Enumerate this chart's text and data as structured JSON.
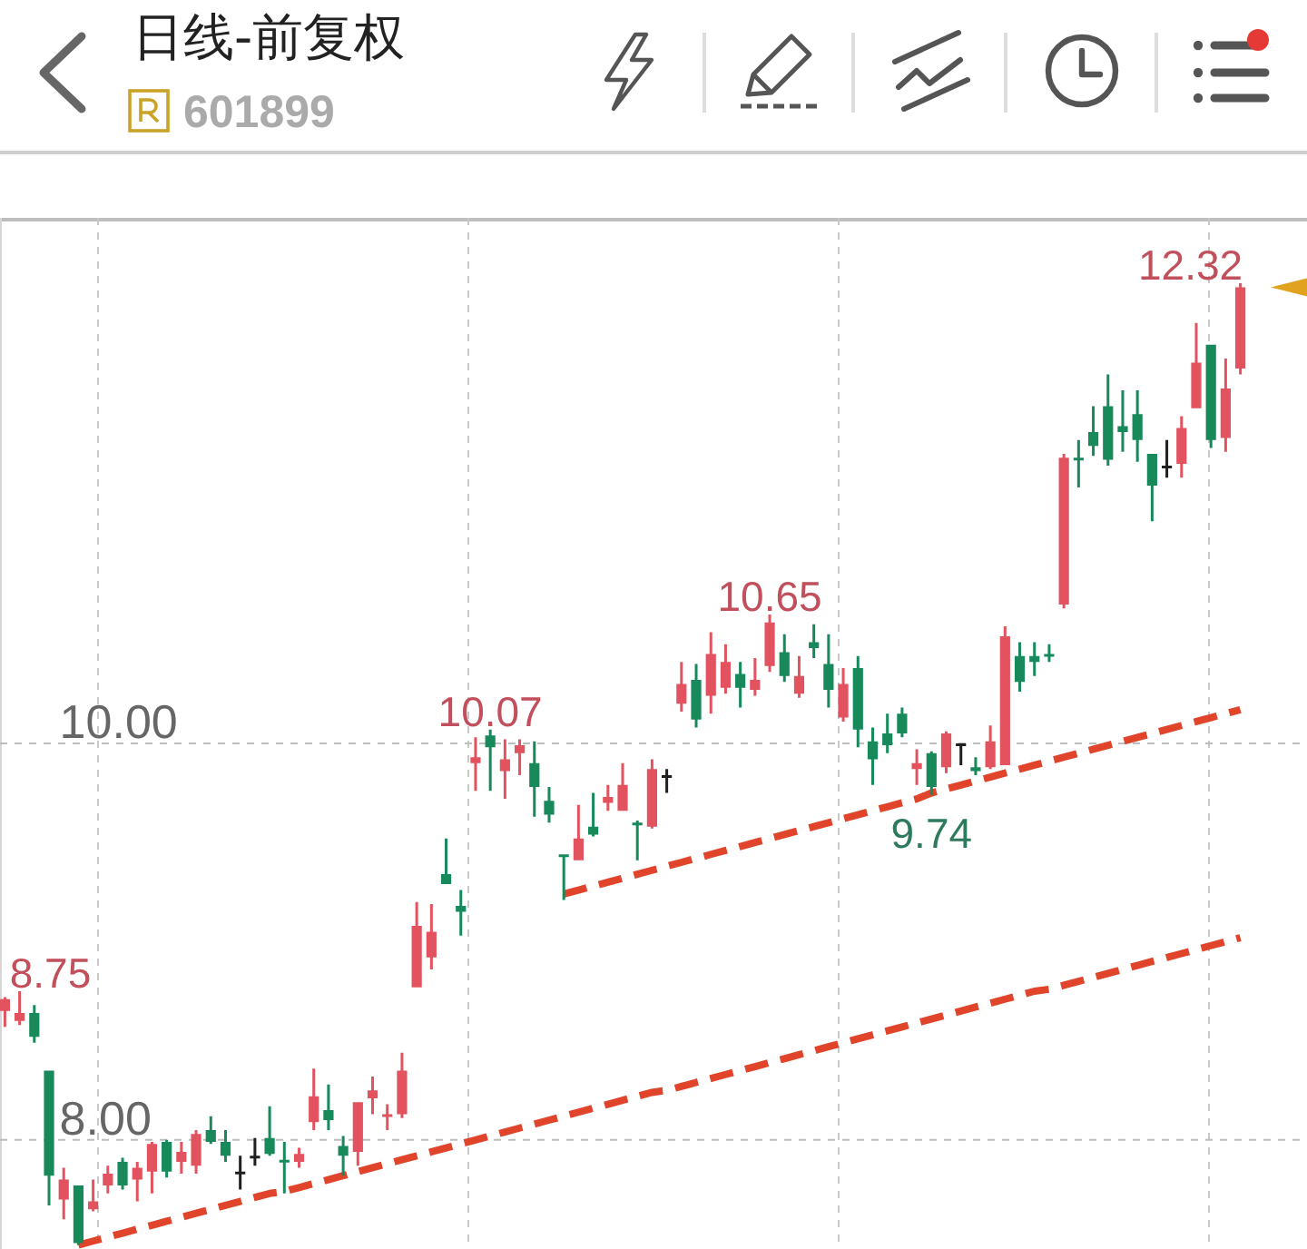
{
  "chart_data": {
    "type": "candlestick",
    "title": "日线-前复权",
    "subtitle": "601899",
    "categories": [
      null,
      null,
      null,
      null,
      null,
      null,
      null,
      null,
      null,
      null,
      null,
      null,
      null,
      null,
      null,
      null,
      null,
      null,
      null,
      null,
      null,
      null,
      null,
      null,
      null,
      null,
      null,
      null,
      null,
      null,
      null,
      null,
      null,
      null,
      null,
      null,
      null,
      null,
      null,
      null,
      null,
      null,
      null,
      null,
      null,
      null,
      null,
      null,
      null,
      null,
      null,
      null,
      null,
      null,
      null,
      null,
      null,
      null,
      null,
      null,
      null,
      null,
      null,
      null,
      null,
      null,
      null,
      null,
      null,
      null,
      null,
      null,
      null,
      null,
      null,
      null,
      null,
      null,
      null,
      null,
      null,
      null,
      null,
      null,
      null
    ],
    "ohlc": [
      [
        8.65,
        8.72,
        8.57,
        8.71
      ],
      [
        8.6,
        8.75,
        8.58,
        8.64
      ],
      [
        8.64,
        8.68,
        8.49,
        8.52
      ],
      [
        8.35,
        8.35,
        7.67,
        7.82
      ],
      [
        7.7,
        7.86,
        7.6,
        7.8
      ],
      [
        7.77,
        7.77,
        7.47,
        7.48
      ],
      [
        7.65,
        7.8,
        7.64,
        7.69
      ],
      [
        7.77,
        7.87,
        7.73,
        7.83
      ],
      [
        7.89,
        7.91,
        7.75,
        7.77
      ],
      [
        7.8,
        7.89,
        7.69,
        7.86
      ],
      [
        7.84,
        7.99,
        7.73,
        7.98
      ],
      [
        7.99,
        8.0,
        7.81,
        7.84
      ],
      [
        7.89,
        7.99,
        7.83,
        7.94
      ],
      [
        7.87,
        8.05,
        7.83,
        8.03
      ],
      [
        8.05,
        8.12,
        7.98,
        7.99
      ],
      [
        7.99,
        8.05,
        7.89,
        7.92
      ],
      [
        7.84,
        7.92,
        7.75,
        7.84
      ],
      [
        7.92,
        8.01,
        7.87,
        7.92
      ],
      [
        8.01,
        8.17,
        7.92,
        7.93
      ],
      [
        7.9,
        7.99,
        7.73,
        7.89
      ],
      [
        7.89,
        7.96,
        7.86,
        7.93
      ],
      [
        8.09,
        8.36,
        8.05,
        8.22
      ],
      [
        8.15,
        8.28,
        8.05,
        8.1
      ],
      [
        7.97,
        8.02,
        7.82,
        7.92
      ],
      [
        7.94,
        8.19,
        7.87,
        8.19
      ],
      [
        8.21,
        8.32,
        8.13,
        8.25
      ],
      [
        8.12,
        8.18,
        8.05,
        8.13
      ],
      [
        8.13,
        8.44,
        8.11,
        8.35
      ],
      [
        8.77,
        9.2,
        8.77,
        9.08
      ],
      [
        8.92,
        9.19,
        8.86,
        9.05
      ],
      [
        9.34,
        9.52,
        9.29,
        9.29
      ],
      [
        9.18,
        9.26,
        9.03,
        9.15
      ],
      [
        9.9,
        10.03,
        9.76,
        9.93
      ],
      [
        10.04,
        10.07,
        9.76,
        9.98
      ],
      [
        9.86,
        10.02,
        9.72,
        9.92
      ],
      [
        9.95,
        10.02,
        9.84,
        9.99
      ],
      [
        9.9,
        10.01,
        9.63,
        9.78
      ],
      [
        9.71,
        9.78,
        9.6,
        9.64
      ],
      [
        9.44,
        9.44,
        9.21,
        9.43
      ],
      [
        9.41,
        9.69,
        9.41,
        9.52
      ],
      [
        9.58,
        9.75,
        9.53,
        9.54
      ],
      [
        9.7,
        9.79,
        9.66,
        9.73
      ],
      [
        9.66,
        9.9,
        9.66,
        9.79
      ],
      [
        9.6,
        9.61,
        9.41,
        9.59
      ],
      [
        9.58,
        9.92,
        9.57,
        9.87
      ],
      [
        9.84,
        9.87,
        9.75,
        9.84
      ],
      [
        10.2,
        10.41,
        10.16,
        10.3
      ],
      [
        10.32,
        10.4,
        10.08,
        10.12
      ],
      [
        10.24,
        10.56,
        10.15,
        10.45
      ],
      [
        10.28,
        10.5,
        10.25,
        10.41
      ],
      [
        10.35,
        10.41,
        10.18,
        10.28
      ],
      [
        10.27,
        10.43,
        10.24,
        10.32
      ],
      [
        10.39,
        10.65,
        10.36,
        10.61
      ],
      [
        10.46,
        10.55,
        10.31,
        10.34
      ],
      [
        10.25,
        10.44,
        10.23,
        10.34
      ],
      [
        10.51,
        10.6,
        10.43,
        10.48
      ],
      [
        10.4,
        10.55,
        10.18,
        10.27
      ],
      [
        10.13,
        10.38,
        10.11,
        10.3
      ],
      [
        10.38,
        10.44,
        9.98,
        10.07
      ],
      [
        10.01,
        10.08,
        9.79,
        9.92
      ],
      [
        10.05,
        10.15,
        9.95,
        9.99
      ],
      [
        10.15,
        10.18,
        10.03,
        10.05
      ],
      [
        9.87,
        9.97,
        9.79,
        9.9
      ],
      [
        9.95,
        9.96,
        9.74,
        9.78
      ],
      [
        9.88,
        10.06,
        9.85,
        10.05
      ],
      [
        10.0,
        10.0,
        9.89,
        10.0
      ],
      [
        9.88,
        9.93,
        9.84,
        9.86
      ],
      [
        9.88,
        10.09,
        9.87,
        10.01
      ],
      [
        9.89,
        10.59,
        9.89,
        10.54
      ],
      [
        10.44,
        10.51,
        10.26,
        10.31
      ],
      [
        10.44,
        10.51,
        10.34,
        10.41
      ],
      [
        10.45,
        10.5,
        10.41,
        10.44
      ],
      [
        10.7,
        11.46,
        10.68,
        11.44
      ],
      [
        11.44,
        11.53,
        11.29,
        11.43
      ],
      [
        11.57,
        11.7,
        11.45,
        11.5
      ],
      [
        11.7,
        11.86,
        11.4,
        11.43
      ],
      [
        11.6,
        11.78,
        11.47,
        11.57
      ],
      [
        11.66,
        11.78,
        11.42,
        11.53
      ],
      [
        11.46,
        11.46,
        11.12,
        11.3
      ],
      [
        11.4,
        11.53,
        11.34,
        11.4
      ],
      [
        11.41,
        11.65,
        11.34,
        11.59
      ],
      [
        11.69,
        12.12,
        11.69,
        11.92
      ],
      [
        12.01,
        12.01,
        11.49,
        11.53
      ],
      [
        11.54,
        11.94,
        11.47,
        11.79
      ],
      [
        11.89,
        12.32,
        11.86,
        12.3
      ]
    ],
    "value_labels": [
      null,
      "8.75",
      null,
      null,
      null,
      null,
      null,
      null,
      null,
      null,
      null,
      null,
      null,
      null,
      null,
      null,
      null,
      null,
      null,
      null,
      null,
      null,
      null,
      null,
      null,
      null,
      null,
      null,
      null,
      null,
      null,
      null,
      null,
      "10.07",
      null,
      null,
      null,
      null,
      null,
      null,
      null,
      null,
      null,
      null,
      null,
      null,
      null,
      null,
      null,
      null,
      null,
      null,
      "10.65",
      null,
      null,
      null,
      null,
      null,
      null,
      null,
      null,
      null,
      null,
      "9.74",
      null,
      null,
      null,
      null,
      null,
      null,
      null,
      null,
      null,
      null,
      null,
      null,
      null,
      null,
      null,
      null,
      null,
      null,
      null,
      null,
      "12.32"
    ],
    "colors": [
      "#e2535f",
      "#e2535f",
      "#17895b",
      "#17895b",
      "#e2535f",
      "#17895b",
      "#e2535f",
      "#e2535f",
      "#17895b",
      "#e2535f",
      "#e2535f",
      "#17895b",
      "#e2535f",
      "#e2535f",
      "#17895b",
      "#17895b",
      "#1f1f1f",
      "#1f1f1f",
      "#17895b",
      "#17895b",
      "#e2535f",
      "#e2535f",
      "#17895b",
      "#17895b",
      "#e2535f",
      "#e2535f",
      "#e2535f",
      "#e2535f",
      "#e2535f",
      "#e2535f",
      "#17895b",
      "#17895b",
      "#e2535f",
      "#17895b",
      "#e2535f",
      "#e2535f",
      "#17895b",
      "#17895b",
      "#17895b",
      "#e2535f",
      "#17895b",
      "#e2535f",
      "#e2535f",
      "#17895b",
      "#e2535f",
      "#1f1f1f",
      "#e2535f",
      "#17895b",
      "#e2535f",
      "#e2535f",
      "#17895b",
      "#e2535f",
      "#e2535f",
      "#17895b",
      "#e2535f",
      "#17895b",
      "#17895b",
      "#e2535f",
      "#17895b",
      "#17895b",
      "#17895b",
      "#17895b",
      "#e2535f",
      "#17895b",
      "#e2535f",
      "#1f1f1f",
      "#17895b",
      "#e2535f",
      "#e2535f",
      "#17895b",
      "#17895b",
      "#17895b",
      "#e2535f",
      "#17895b",
      "#17895b",
      "#17895b",
      "#17895b",
      "#17895b",
      "#17895b",
      "#1f1f1f",
      "#e2535f",
      "#e2535f",
      "#17895b",
      "#e2535f",
      "#e2535f"
    ],
    "series": [
      {
        "type": "line",
        "color": "#e0452b",
        "line_style": "dashed",
        "values": [
          null,
          null,
          null,
          null,
          null,
          null,
          null,
          null,
          null,
          null,
          null,
          null,
          null,
          null,
          null,
          null,
          null,
          null,
          null,
          null,
          null,
          null,
          null,
          null,
          null,
          null,
          null,
          null,
          null,
          null,
          null,
          null,
          null,
          null,
          null,
          null,
          null,
          null,
          9.24,
          9.26,
          9.28,
          9.3,
          9.32,
          9.34,
          9.36,
          9.38,
          9.4,
          9.42,
          9.44,
          9.46,
          9.48,
          9.5,
          9.52,
          9.54,
          9.56,
          9.58,
          9.6,
          9.62,
          9.64,
          9.66,
          9.68,
          9.7,
          9.72,
          9.75,
          9.77,
          9.79,
          9.81,
          9.83,
          9.85,
          9.87,
          9.89,
          9.91,
          9.93,
          9.95,
          9.97,
          9.99,
          10.01,
          10.03,
          10.05,
          10.07,
          10.09,
          10.11,
          10.13,
          10.15,
          10.17
        ]
      },
      {
        "type": "line",
        "color": "#e0452b",
        "line_style": "dashed",
        "values": [
          null,
          null,
          null,
          null,
          null,
          7.47,
          7.49,
          7.51,
          7.53,
          7.55,
          7.57,
          7.59,
          7.61,
          7.63,
          7.65,
          7.67,
          7.69,
          7.71,
          7.73,
          7.74,
          7.76,
          7.78,
          7.8,
          7.82,
          7.84,
          7.86,
          7.88,
          7.9,
          7.92,
          7.94,
          7.96,
          7.98,
          8.0,
          8.02,
          8.04,
          8.06,
          8.08,
          8.1,
          8.12,
          8.14,
          8.16,
          8.18,
          8.2,
          8.22,
          8.24,
          8.25,
          8.27,
          8.29,
          8.31,
          8.33,
          8.35,
          8.37,
          8.39,
          8.41,
          8.43,
          8.45,
          8.47,
          8.49,
          8.51,
          8.53,
          8.55,
          8.57,
          8.59,
          8.61,
          8.63,
          8.65,
          8.67,
          8.69,
          8.71,
          8.73,
          8.75,
          8.76,
          8.78,
          8.8,
          8.82,
          8.84,
          8.86,
          8.88,
          8.9,
          8.92,
          8.94,
          8.96,
          8.98,
          9.0,
          9.02
        ]
      }
    ],
    "ylim": [
      7.45,
      12.65
    ],
    "yticks": [
      {
        "value": 8,
        "label": "8.00"
      },
      {
        "value": 10,
        "label": "10.00"
      }
    ],
    "grid": true,
    "tick_labels": "y"
  }
}
